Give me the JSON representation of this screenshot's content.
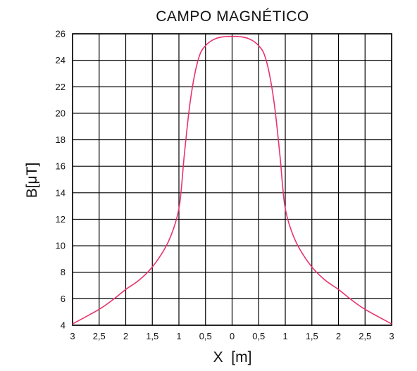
{
  "chart_data": {
    "type": "line",
    "title": "CAMPO  MAGNÉTICO",
    "xlabel": "X  [m]",
    "ylabel": "B[μT]",
    "xlim": [
      -3,
      3
    ],
    "ylim": [
      4,
      26
    ],
    "grid": true,
    "x_ticks": [
      -3,
      -2.5,
      -2,
      -1.5,
      -1,
      -0.5,
      0,
      0.5,
      1,
      1.5,
      2,
      2.5,
      3
    ],
    "x_tick_labels": [
      "3",
      "2,5",
      "2",
      "1,5",
      "1",
      "0,5",
      "0",
      "0,5",
      "1",
      "1,5",
      "2",
      "2,5",
      "3"
    ],
    "y_ticks": [
      4,
      6,
      8,
      10,
      12,
      14,
      16,
      18,
      20,
      22,
      24,
      26
    ],
    "y_tick_labels": [
      "4",
      "6",
      "8",
      "10",
      "12",
      "14",
      "16",
      "18",
      "20",
      "22",
      "24",
      "26"
    ],
    "line_color": "#e8336b",
    "series": [
      {
        "x": [
          -3,
          -2.5,
          -2.25,
          -2,
          -1.75,
          -1.5,
          -1.25,
          -1.1,
          -1,
          -0.95,
          -0.9,
          -0.8,
          -0.7,
          -0.6,
          -0.5,
          -0.4,
          -0.3,
          -0.2,
          -0.1,
          0,
          0.1,
          0.2,
          0.3,
          0.4,
          0.5,
          0.6,
          0.7,
          0.8,
          0.9,
          0.95,
          1,
          1.1,
          1.25,
          1.5,
          1.75,
          2,
          2.25,
          2.5,
          3
        ],
        "values": [
          4.1,
          5.2,
          5.9,
          6.7,
          7.4,
          8.4,
          9.9,
          11.3,
          12.8,
          14.5,
          16.8,
          20.5,
          23.0,
          24.5,
          25.1,
          25.45,
          25.65,
          25.75,
          25.8,
          25.8,
          25.8,
          25.75,
          25.65,
          25.45,
          25.1,
          24.5,
          23.0,
          20.5,
          16.8,
          14.5,
          12.8,
          11.3,
          9.9,
          8.4,
          7.4,
          6.7,
          5.9,
          5.2,
          4.1
        ]
      }
    ]
  }
}
